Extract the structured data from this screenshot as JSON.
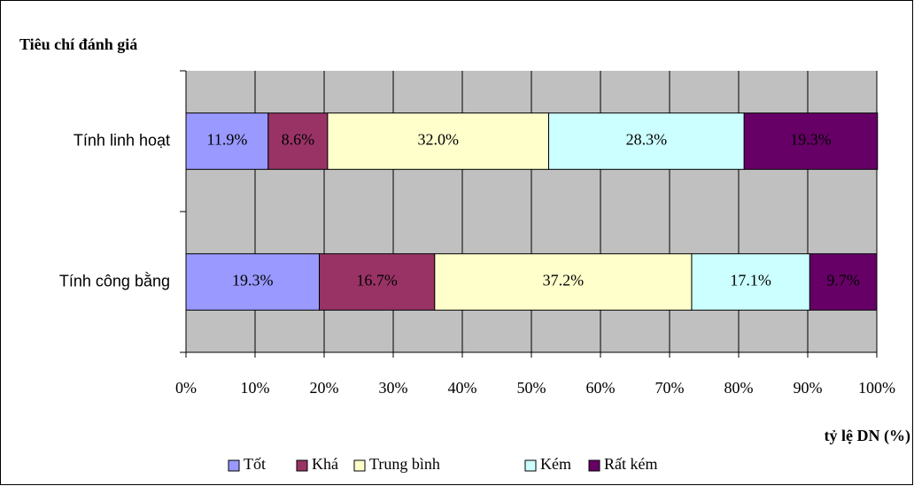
{
  "chart_data": {
    "type": "stacked-barh",
    "title": "Tiêu chí đánh giá",
    "xlabel": "tỷ lệ DN (%)",
    "categories": [
      "Tính linh hoạt",
      "Tính công bằng"
    ],
    "series": [
      {
        "name": "Tốt",
        "color": "#9999ff",
        "values": [
          11.9,
          19.3
        ],
        "value_labels": [
          "11.9%",
          "19.3%"
        ]
      },
      {
        "name": "Khá",
        "color": "#993366",
        "values": [
          8.6,
          16.7
        ],
        "value_labels": [
          "8.6%",
          "16.7%"
        ]
      },
      {
        "name": "Trung bình",
        "color": "#ffffcc",
        "values": [
          32.0,
          37.2
        ],
        "value_labels": [
          "32.0%",
          "37.2%"
        ]
      },
      {
        "name": "Kém",
        "color": "#ccffff",
        "values": [
          28.3,
          17.1
        ],
        "value_labels": [
          "28.3%",
          "17.1%"
        ]
      },
      {
        "name": "Rất kém",
        "color": "#660066",
        "values": [
          19.3,
          9.7
        ],
        "value_labels": [
          "19.3%",
          "9.7%"
        ]
      }
    ],
    "xlim": [
      0,
      100
    ],
    "xticks": [
      {
        "value": 0,
        "label": "0%"
      },
      {
        "value": 10,
        "label": "10%"
      },
      {
        "value": 20,
        "label": "20%"
      },
      {
        "value": 30,
        "label": "30%"
      },
      {
        "value": 40,
        "label": "40%"
      },
      {
        "value": 50,
        "label": "50%"
      },
      {
        "value": 60,
        "label": "60%"
      },
      {
        "value": 70,
        "label": "70%"
      },
      {
        "value": 80,
        "label": "80%"
      },
      {
        "value": 90,
        "label": "90%"
      },
      {
        "value": 100,
        "label": "100%"
      }
    ],
    "grid": true,
    "legend": "bottom"
  }
}
